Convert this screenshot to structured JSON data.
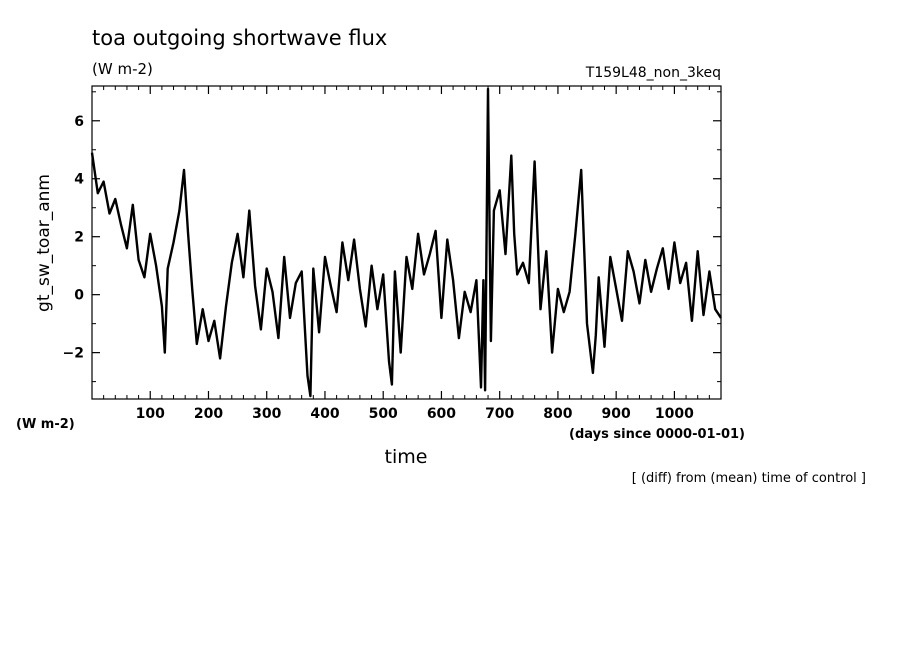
{
  "chart_data": {
    "type": "line",
    "title": "toa outgoing shortwave flux",
    "subtitle": "(W m-2)",
    "experiment": "T159L48_non_3keq",
    "xlabel": "time",
    "xunits": "(days since 0000-01-01)",
    "ylabel": "gt_sw_toar_anm",
    "yunits": "(W m-2)",
    "note": "[ (diff) from (mean) time of control ]",
    "xlim": [
      0,
      1080
    ],
    "ylim": [
      -3.6,
      7.2
    ],
    "xticks": [
      100,
      200,
      300,
      400,
      500,
      600,
      700,
      800,
      900,
      1000
    ],
    "yticks": [
      -2,
      0,
      2,
      4,
      6
    ],
    "grid": false,
    "series_color": "#000000",
    "series": [
      {
        "x": [
          0,
          10,
          20,
          30,
          40,
          50,
          60,
          70,
          80,
          90,
          100,
          110,
          120,
          125,
          130,
          140,
          150,
          158,
          165,
          172,
          180,
          190,
          200,
          210,
          220,
          230,
          240,
          250,
          260,
          270,
          280,
          290,
          300,
          310,
          320,
          330,
          340,
          350,
          360,
          370,
          375,
          380,
          390,
          400,
          410,
          420,
          430,
          440,
          450,
          460,
          470,
          480,
          490,
          500,
          510,
          515,
          520,
          530,
          540,
          550,
          560,
          570,
          580,
          590,
          600,
          610,
          620,
          630,
          640,
          650,
          660,
          668,
          672,
          675,
          680,
          685,
          690,
          700,
          710,
          720,
          725,
          730,
          740,
          750,
          760,
          770,
          780,
          790,
          800,
          810,
          820,
          830,
          840,
          850,
          860,
          865,
          870,
          880,
          890,
          900,
          910,
          920,
          930,
          940,
          950,
          960,
          970,
          980,
          990,
          1000,
          1010,
          1020,
          1030,
          1040,
          1050,
          1060,
          1070,
          1080
        ],
        "values": [
          4.9,
          3.5,
          3.9,
          2.8,
          3.3,
          2.4,
          1.6,
          3.1,
          1.2,
          0.6,
          2.1,
          1.0,
          -0.4,
          -2.0,
          0.9,
          1.8,
          2.9,
          4.3,
          2.1,
          0.2,
          -1.7,
          -0.5,
          -1.6,
          -0.9,
          -2.2,
          -0.4,
          1.1,
          2.1,
          0.6,
          2.9,
          0.3,
          -1.2,
          0.9,
          0.1,
          -1.5,
          1.3,
          -0.8,
          0.4,
          0.8,
          -2.8,
          -3.5,
          0.9,
          -1.3,
          1.3,
          0.3,
          -0.6,
          1.8,
          0.5,
          1.9,
          0.2,
          -1.1,
          1.0,
          -0.5,
          0.7,
          -2.3,
          -3.1,
          0.8,
          -2.0,
          1.3,
          0.2,
          2.1,
          0.7,
          1.4,
          2.2,
          -0.8,
          1.9,
          0.5,
          -1.5,
          0.1,
          -0.6,
          0.5,
          -3.2,
          0.5,
          -3.3,
          7.1,
          -1.6,
          2.9,
          3.6,
          1.4,
          4.8,
          2.1,
          0.7,
          1.1,
          0.4,
          4.6,
          -0.5,
          1.5,
          -2.0,
          0.2,
          -0.6,
          0.1,
          2.1,
          4.3,
          -1.0,
          -2.7,
          -1.4,
          0.6,
          -1.8,
          1.3,
          0.2,
          -0.9,
          1.5,
          0.8,
          -0.3,
          1.2,
          0.1,
          0.9,
          1.6,
          0.2,
          1.8,
          0.4,
          1.1,
          -0.9,
          1.5,
          -0.7,
          0.8,
          -0.5,
          -0.8
        ]
      }
    ]
  }
}
